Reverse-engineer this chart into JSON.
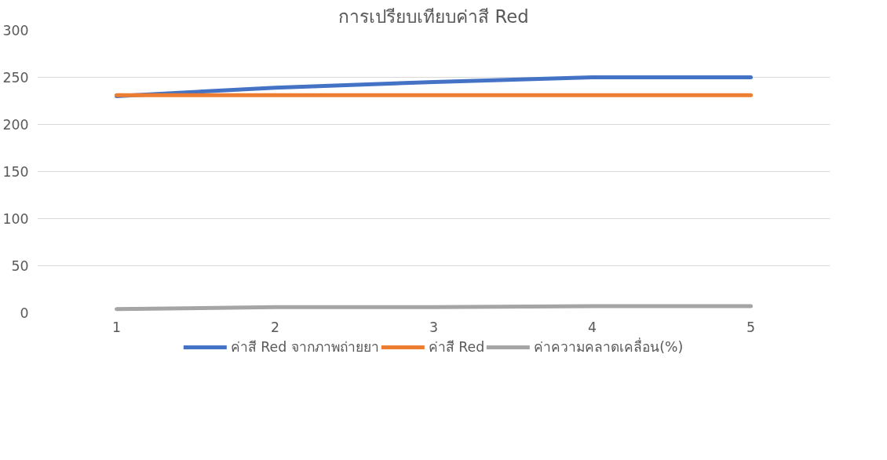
{
  "chart_data": {
    "type": "line",
    "title": "การเปรียบเทียบค่าสี Red",
    "categories": [
      "1",
      "2",
      "3",
      "4",
      "5"
    ],
    "series": [
      {
        "name": "ค่าสี Red จากภาพถ่ายยา",
        "color": "#4472c4",
        "values": [
          230,
          239,
          245,
          250,
          250
        ]
      },
      {
        "name": "ค่าสี Red",
        "color": "#ed7d31",
        "values": [
          231,
          231,
          231,
          231,
          231
        ]
      },
      {
        "name": "ค่าความคลาดเคลื่อน(%)",
        "color": "#a5a5a5",
        "values": [
          4,
          6,
          6,
          7,
          7
        ]
      }
    ],
    "ylim": [
      0,
      300
    ],
    "yticks": [
      0,
      50,
      100,
      150,
      200,
      250,
      300
    ],
    "grid": "y",
    "legend": "bottom",
    "marker": "none"
  }
}
